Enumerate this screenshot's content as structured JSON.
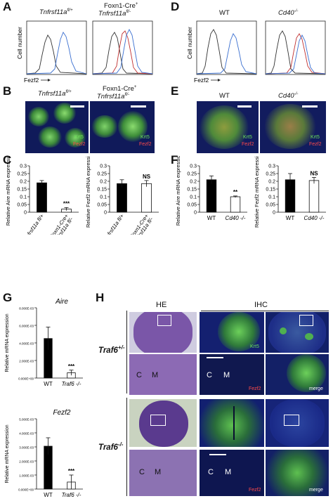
{
  "panels": {
    "A": {
      "letter": "A",
      "col1": "Tnfrsf11a",
      "col1_sup": "fl/+",
      "col2_line1": "Foxn1-Cre",
      "col2_sup1": "+",
      "col2_line2": "Tnfrsf11a",
      "col2_sup2": "fl/-",
      "ylabel": "Cell number",
      "xlabel": "Fezf2"
    },
    "D": {
      "letter": "D",
      "col1": "WT",
      "col2": "Cd40",
      "col2_sup": "-/-",
      "ylabel": "Cell number",
      "xlabel": "Fezf2"
    },
    "B": {
      "letter": "B",
      "col1": "Tnfrsf11a",
      "col1_sup": "fl/+",
      "col2_line1": "Foxn1-Cre",
      "col2_sup1": "+",
      "col2_line2": "Tnfrsf11a",
      "col2_sup2": "fl/-",
      "stain1": "Krt5",
      "stain2": "Fezf2"
    },
    "E": {
      "letter": "E",
      "col1": "WT",
      "col2": "Cd40",
      "col2_sup": "-/-",
      "stain1": "Krt5",
      "stain2": "Fezf2"
    },
    "C": {
      "letter": "C",
      "sig": "***",
      "ns": "NS"
    },
    "F": {
      "letter": "F",
      "sig": "**",
      "ns": "NS"
    },
    "G": {
      "letter": "G",
      "aire_title": "Aire",
      "fezf2_title": "Fezf2",
      "ylabel": "Relative mRNA expression",
      "sig1": "***",
      "sig2": "***",
      "x_wt": "WT",
      "x_ko": "Traf6",
      "x_ko_sup": "-/-"
    },
    "H": {
      "letter": "H",
      "he": "HE",
      "ihc": "IHC",
      "row1_gene": "Traf6",
      "row1_sup": "+/-",
      "row2_gene": "Traf6",
      "row2_sup": "-/-",
      "krt5": "Krt5",
      "fezf2": "Fezf2",
      "merge": "merge",
      "C": "C",
      "M": "M"
    }
  },
  "chart_data": [
    {
      "type": "bar",
      "panel": "C-left",
      "ylabel": "Relative Aire mRNA expression",
      "categories": [
        "Tnfrsf11a fl/+",
        "Foxn1-Cre+ Tnfrsf11a fl/-"
      ],
      "values": [
        0.19,
        0.02
      ],
      "errors": [
        0.015,
        0.01
      ],
      "ylim": [
        0,
        0.3
      ],
      "yticks": [
        "0",
        "0.05",
        "0.1",
        "0.15",
        "0.2",
        "0.25",
        "0.3"
      ],
      "annotation": "***"
    },
    {
      "type": "bar",
      "panel": "C-right",
      "ylabel": "Relative Fezf2 mRNA expression",
      "categories": [
        "Tnfrsf11a fl/+",
        "Foxn1-Cre+ Tnfrsf11a fl/-"
      ],
      "values": [
        0.185,
        0.185
      ],
      "errors": [
        0.025,
        0.02
      ],
      "ylim": [
        0,
        0.3
      ],
      "yticks": [
        "0",
        "0.05",
        "0.1",
        "0.15",
        "0.2",
        "0.25",
        "0.3"
      ],
      "annotation": "NS"
    },
    {
      "type": "bar",
      "panel": "F-left",
      "ylabel": "Relative Aire mRNA expression",
      "categories": [
        "WT",
        "Cd40 -/-"
      ],
      "values": [
        0.21,
        0.1
      ],
      "errors": [
        0.025,
        0.005
      ],
      "ylim": [
        0,
        0.3
      ],
      "yticks": [
        "0",
        "0.05",
        "0.1",
        "0.15",
        "0.2",
        "0.25",
        "0.3"
      ],
      "annotation": "**"
    },
    {
      "type": "bar",
      "panel": "F-right",
      "ylabel": "Relative Fezf2 mRNA expression",
      "categories": [
        "WT",
        "Cd40 -/-"
      ],
      "values": [
        0.21,
        0.205
      ],
      "errors": [
        0.04,
        0.02
      ],
      "ylim": [
        0,
        0.3
      ],
      "yticks": [
        "0",
        "0.05",
        "0.1",
        "0.15",
        "0.2",
        "0.25",
        "0.3"
      ],
      "annotation": "NS"
    },
    {
      "type": "bar",
      "panel": "G-Aire",
      "title": "Aire",
      "ylabel": "Relative mRNA expression",
      "categories": [
        "WT",
        "Traf6 -/-"
      ],
      "values": [
        0.0045,
        0.0006
      ],
      "errors": [
        0.0013,
        0.0003
      ],
      "ylim": [
        0,
        0.008
      ],
      "yticks": [
        "0.000E+00",
        "2.000E-03",
        "4.000E-03",
        "6.000E-03",
        "8.000E-03"
      ],
      "annotation": "***"
    },
    {
      "type": "bar",
      "panel": "G-Fezf2",
      "title": "Fezf2",
      "ylabel": "Relative mRNA expression",
      "categories": [
        "WT",
        "Traf6 -/-"
      ],
      "values": [
        0.00305,
        0.0005
      ],
      "errors": [
        0.0006,
        0.0005
      ],
      "ylim": [
        0,
        0.005
      ],
      "yticks": [
        "0.000E+00",
        "1.000E-03",
        "2.000E-03",
        "3.000E-03",
        "4.000E-03",
        "5.000E-03"
      ],
      "annotation": "***"
    }
  ]
}
